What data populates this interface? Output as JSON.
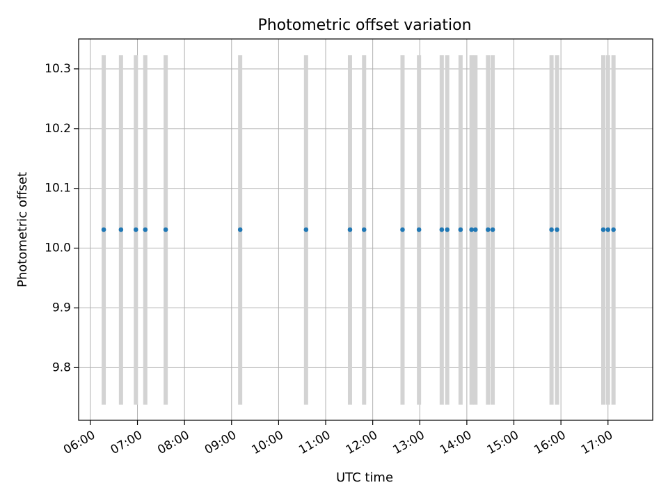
{
  "chart_data": {
    "type": "scatter",
    "title": "Photometric offset variation",
    "xlabel": "UTC time",
    "ylabel": "Photometric offset",
    "x_tick_labels": [
      "06:00",
      "07:00",
      "08:00",
      "09:00",
      "10:00",
      "11:00",
      "12:00",
      "13:00",
      "14:00",
      "15:00",
      "16:00",
      "17:00"
    ],
    "y_tick_labels": [
      "9.8",
      "9.9",
      "10.0",
      "10.1",
      "10.2",
      "10.3"
    ],
    "y_ticks": [
      9.8,
      9.9,
      10.0,
      10.1,
      10.2,
      10.3
    ],
    "xlim": [
      "05:45",
      "17:57"
    ],
    "ylim": [
      9.712,
      10.35
    ],
    "grid": true,
    "point_color": "#1f77b4",
    "errorbar_color": "#d3d3d3",
    "points": [
      {
        "x": "06:17",
        "y": 10.031,
        "ylo": 9.738,
        "yhi": 10.323
      },
      {
        "x": "06:39",
        "y": 10.031,
        "ylo": 9.738,
        "yhi": 10.323
      },
      {
        "x": "06:58",
        "y": 10.031,
        "ylo": 9.738,
        "yhi": 10.323
      },
      {
        "x": "07:10",
        "y": 10.031,
        "ylo": 9.738,
        "yhi": 10.323
      },
      {
        "x": "07:36",
        "y": 10.031,
        "ylo": 9.738,
        "yhi": 10.323
      },
      {
        "x": "09:11",
        "y": 10.031,
        "ylo": 9.738,
        "yhi": 10.323
      },
      {
        "x": "10:35",
        "y": 10.031,
        "ylo": 9.738,
        "yhi": 10.323
      },
      {
        "x": "11:31",
        "y": 10.031,
        "ylo": 9.738,
        "yhi": 10.323
      },
      {
        "x": "11:49",
        "y": 10.031,
        "ylo": 9.738,
        "yhi": 10.323
      },
      {
        "x": "12:38",
        "y": 10.031,
        "ylo": 9.738,
        "yhi": 10.323
      },
      {
        "x": "12:59",
        "y": 10.031,
        "ylo": 9.738,
        "yhi": 10.323
      },
      {
        "x": "13:28",
        "y": 10.031,
        "ylo": 9.738,
        "yhi": 10.323
      },
      {
        "x": "13:35",
        "y": 10.031,
        "ylo": 9.738,
        "yhi": 10.323
      },
      {
        "x": "13:52",
        "y": 10.031,
        "ylo": 9.738,
        "yhi": 10.323
      },
      {
        "x": "14:06",
        "y": 10.031,
        "ylo": 9.738,
        "yhi": 10.323
      },
      {
        "x": "14:11",
        "y": 10.031,
        "ylo": 9.738,
        "yhi": 10.323
      },
      {
        "x": "14:27",
        "y": 10.031,
        "ylo": 9.738,
        "yhi": 10.323
      },
      {
        "x": "14:33",
        "y": 10.031,
        "ylo": 9.738,
        "yhi": 10.323
      },
      {
        "x": "15:48",
        "y": 10.031,
        "ylo": 9.738,
        "yhi": 10.323
      },
      {
        "x": "15:55",
        "y": 10.031,
        "ylo": 9.738,
        "yhi": 10.323
      },
      {
        "x": "16:54",
        "y": 10.031,
        "ylo": 9.738,
        "yhi": 10.323
      },
      {
        "x": "17:00",
        "y": 10.031,
        "ylo": 9.738,
        "yhi": 10.323
      },
      {
        "x": "17:07",
        "y": 10.031,
        "ylo": 9.738,
        "yhi": 10.323
      }
    ]
  }
}
